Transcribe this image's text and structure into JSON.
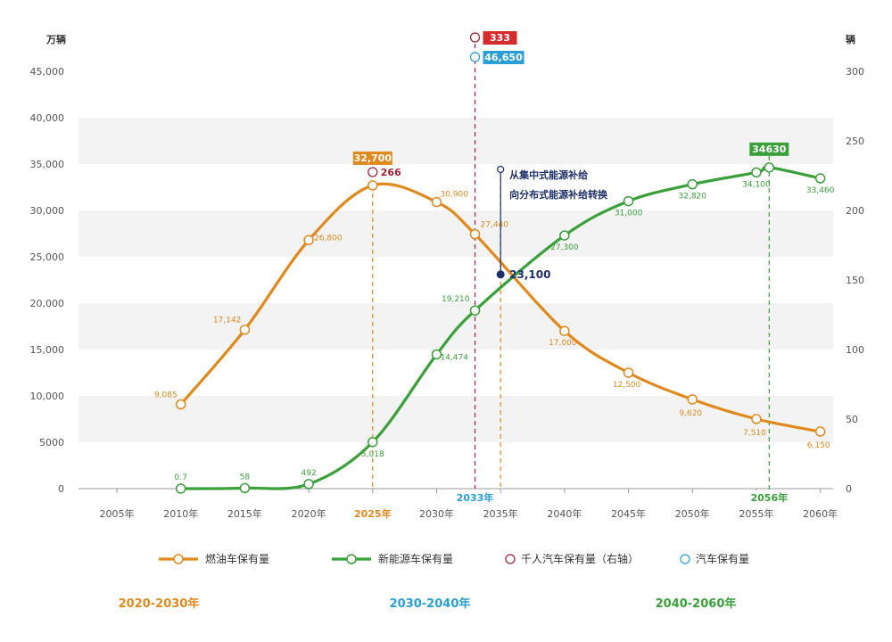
{
  "chart_data": {
    "type": "line",
    "x": [
      2005,
      2010,
      2015,
      2020,
      2025,
      2030,
      2033,
      2035,
      2040,
      2045,
      2050,
      2055,
      2056,
      2060
    ],
    "xtick_labels": [
      "2005年",
      "2010年",
      "2015年",
      "2020年",
      "2025年",
      "2030年",
      "2035年",
      "2040年",
      "2045年",
      "2050年",
      "2055年",
      "2060年"
    ],
    "xtick_values": [
      2005,
      2010,
      2015,
      2020,
      2025,
      2030,
      2035,
      2040,
      2045,
      2050,
      2055,
      2060
    ],
    "xtick_highlight": {
      "2025": "#e08a1e"
    },
    "xlim": [
      2002,
      2061
    ],
    "left_axis": {
      "unit": "万辆",
      "ylim": [
        0,
        45000
      ],
      "ticks": [
        0,
        5000,
        10000,
        15000,
        20000,
        25000,
        30000,
        35000,
        40000,
        45000
      ],
      "tick_labels": [
        "0",
        "5000",
        "10,000",
        "15,000",
        "20,000",
        "25,000",
        "30,000",
        "35,000",
        "40,000",
        "45,000"
      ]
    },
    "right_axis": {
      "unit": "辆",
      "ylim": [
        0,
        300
      ],
      "ticks": [
        0,
        50,
        100,
        150,
        200,
        250,
        300
      ],
      "tick_labels": [
        "0",
        "50",
        "100",
        "150",
        "200",
        "250",
        "300"
      ]
    },
    "series": [
      {
        "name": "燃油车保有量",
        "color": "#e08a1e",
        "x": [
          2010,
          2015,
          2020,
          2025,
          2030,
          2033,
          2040,
          2045,
          2050,
          2055,
          2060
        ],
        "values": [
          9085,
          17142,
          26800,
          32700,
          30900,
          27440,
          17000,
          12500,
          9620,
          7510,
          6150
        ],
        "labels": [
          "9,085",
          "17,142",
          "26,800",
          "",
          "30,900",
          "27,440",
          "17,000",
          "12,500",
          "9,620",
          "7,510",
          "6,150"
        ]
      },
      {
        "name": "新能源车保有量",
        "color": "#3aa03a",
        "x": [
          2010,
          2015,
          2020,
          2025,
          2030,
          2033,
          2040,
          2045,
          2050,
          2055,
          2056,
          2060
        ],
        "values": [
          0.7,
          58,
          492,
          5018,
          14474,
          19210,
          27300,
          31000,
          32820,
          34100,
          34630,
          33460
        ],
        "labels": [
          "0.7",
          "58",
          "492",
          "5,018",
          "14,474",
          "19,210",
          "27,300",
          "31,000",
          "32,820",
          "34,100",
          "",
          "33,460"
        ]
      }
    ],
    "legend": [
      {
        "name": "燃油车保有量",
        "kind": "line",
        "color": "#e08a1e"
      },
      {
        "name": "新能源车保有量",
        "kind": "line",
        "color": "#3aa03a"
      },
      {
        "name": "千人汽车保有量（右轴）",
        "kind": "circle",
        "color": "#a0223a"
      },
      {
        "name": "汽车保有量",
        "kind": "circle",
        "color": "#2a9fd6"
      }
    ],
    "badges": [
      {
        "text": "32,700",
        "x": 2025,
        "y": 32700,
        "color": "#e08a1e"
      },
      {
        "text": "34630",
        "x": 2056,
        "y": 34630,
        "color": "#3aa03a"
      },
      {
        "text": "333",
        "color": "#d62b2b"
      },
      {
        "text": "46,650",
        "color": "#2a9fd6"
      }
    ],
    "callouts": {
      "per_thousand_2025": "266",
      "crossover_value": "23,100",
      "crossover_x": 2035,
      "crossover_y": 23100,
      "crossover_note": [
        "从集中式能源补给",
        "向分布式能源补给转换"
      ]
    },
    "vlines": [
      {
        "x": 2025,
        "color": "#e08a1e"
      },
      {
        "x": 2033,
        "color": "#a0223a",
        "label": "2033年",
        "label_color": "#2a9fd6"
      },
      {
        "x": 2035,
        "color": "#e08a1e"
      },
      {
        "x": 2056,
        "color": "#3aa03a",
        "label": "2056年",
        "label_color": "#3aa03a"
      }
    ],
    "periods": [
      {
        "label": "2020-2030年",
        "color": "#e08a1e"
      },
      {
        "label": "2030-2040年",
        "color": "#2a9fd6"
      },
      {
        "label": "2040-2060年",
        "color": "#3aa03a"
      }
    ],
    "grid": "alternating horizontal bands"
  }
}
